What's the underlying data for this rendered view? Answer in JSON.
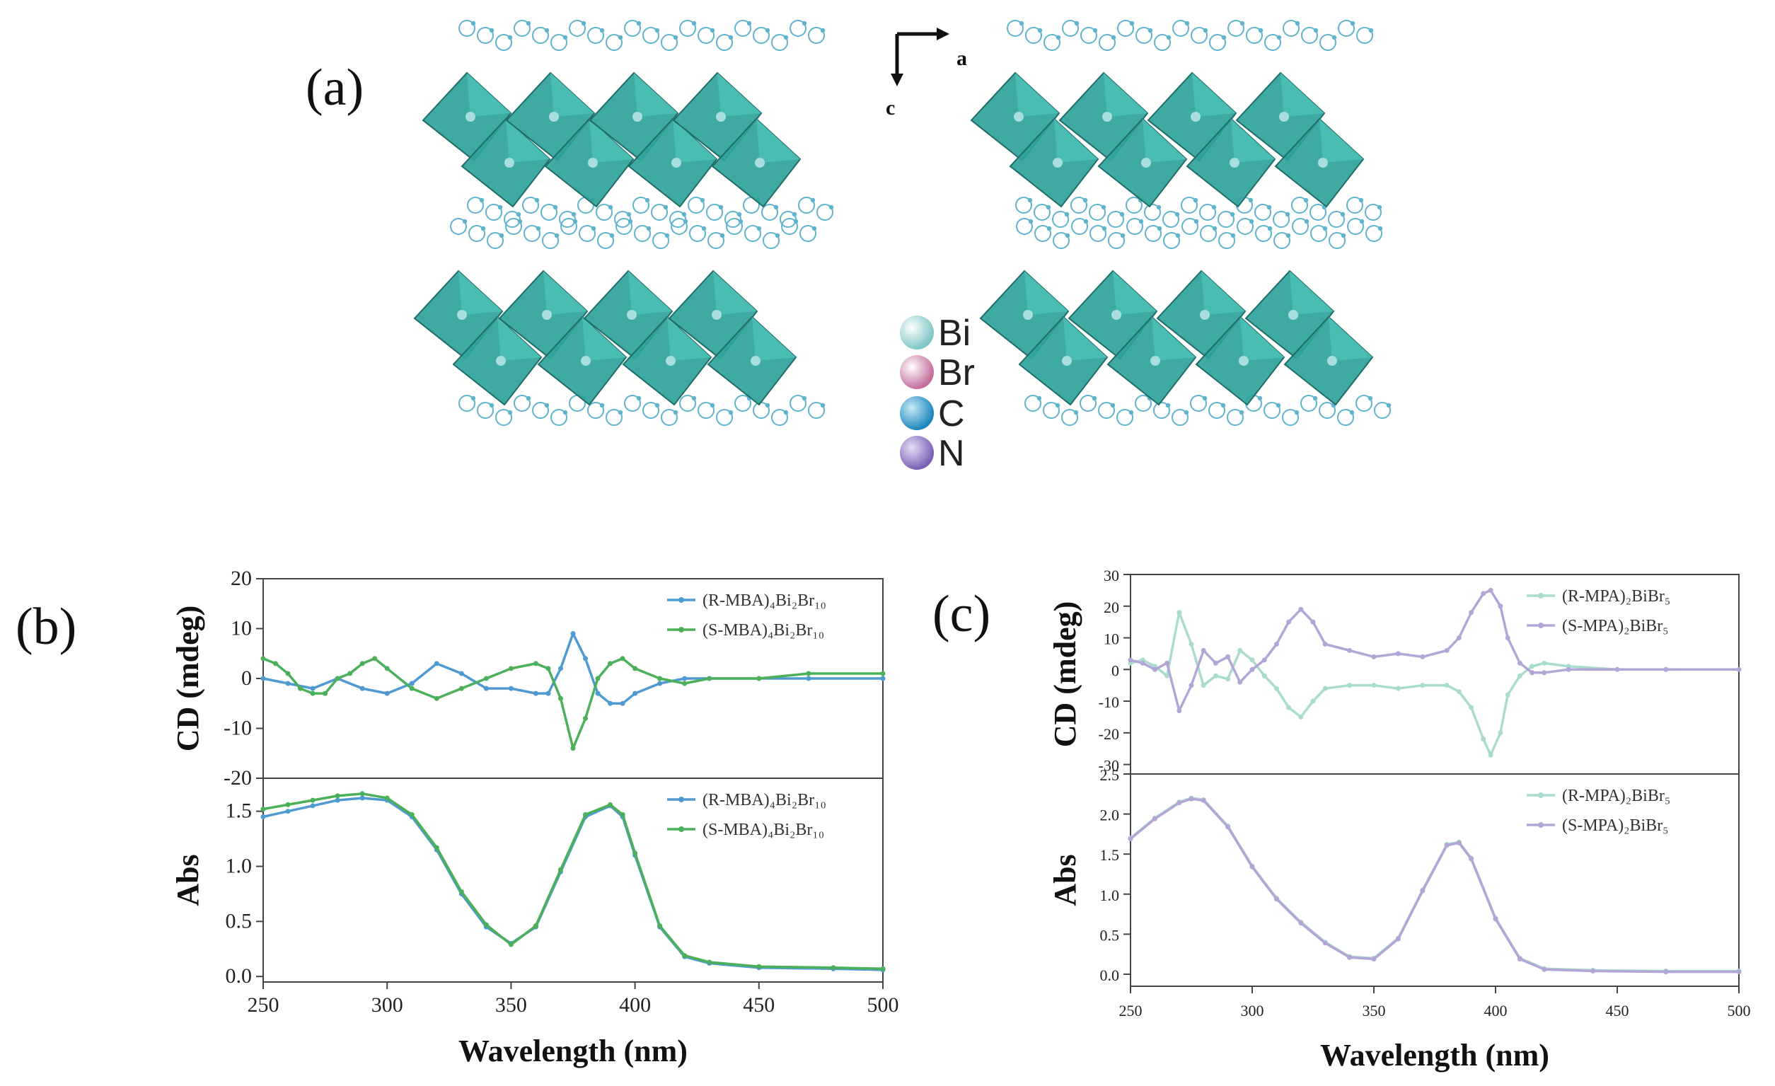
{
  "panels": {
    "a": "(a)",
    "b": "(b)",
    "c": "(c)"
  },
  "structure": {
    "axis_a": "a",
    "axis_c": "c",
    "atoms": [
      {
        "label": "Bi",
        "color": "#a9dede"
      },
      {
        "label": "Br",
        "color": "#d18ab0"
      },
      {
        "label": "C",
        "color": "#2e9fd0"
      },
      {
        "label": "N",
        "color": "#8f77c4"
      }
    ],
    "octahedron_color": "#2fa39a",
    "organic_color": "#5fb3cc"
  },
  "chart_data": [
    {
      "id": "b-cd",
      "type": "line",
      "xlabel": "",
      "ylabel": "CD (mdeg)",
      "xlim": [
        250,
        500
      ],
      "ylim": [
        -20,
        20
      ],
      "yticks": [
        -20,
        -10,
        0,
        10,
        20
      ],
      "series": [
        {
          "name": "(R-MBA)₄Bi₂Br₁₀",
          "color": "#4f9bd1",
          "x": [
            250,
            260,
            270,
            280,
            290,
            300,
            310,
            320,
            330,
            340,
            350,
            360,
            365,
            370,
            375,
            380,
            385,
            390,
            395,
            400,
            410,
            420,
            430,
            450,
            470,
            500
          ],
          "y": [
            0,
            -1,
            -2,
            0,
            -2,
            -3,
            -1,
            3,
            1,
            -2,
            -2,
            -3,
            -3,
            2,
            9,
            4,
            -3,
            -5,
            -5,
            -3,
            -1,
            0,
            0,
            0,
            0,
            0
          ]
        },
        {
          "name": "(S-MBA)₄Bi₂Br₁₀",
          "color": "#4cb05a",
          "x": [
            250,
            255,
            260,
            265,
            270,
            275,
            280,
            285,
            290,
            295,
            300,
            310,
            320,
            330,
            340,
            350,
            360,
            365,
            370,
            375,
            380,
            385,
            390,
            395,
            400,
            410,
            420,
            430,
            450,
            470,
            500
          ],
          "y": [
            4,
            3,
            1,
            -2,
            -3,
            -3,
            0,
            1,
            3,
            4,
            2,
            -2,
            -4,
            -2,
            0,
            2,
            3,
            2,
            -4,
            -14,
            -8,
            0,
            3,
            4,
            2,
            0,
            -1,
            0,
            0,
            1,
            1
          ]
        }
      ]
    },
    {
      "id": "b-abs",
      "type": "line",
      "xlabel": "Wavelength (nm)",
      "ylabel": "Abs",
      "xlim": [
        250,
        500
      ],
      "ylim": [
        -0.05,
        1.8
      ],
      "yticks": [
        0.0,
        0.5,
        1.0,
        1.5
      ],
      "xticks": [
        250,
        300,
        350,
        400,
        450,
        500
      ],
      "series": [
        {
          "name": "(R-MBA)₄Bi₂Br₁₀",
          "color": "#4f9bd1",
          "x": [
            250,
            260,
            270,
            280,
            290,
            300,
            310,
            320,
            330,
            340,
            350,
            360,
            370,
            380,
            390,
            395,
            400,
            410,
            420,
            430,
            450,
            480,
            500
          ],
          "y": [
            1.45,
            1.5,
            1.55,
            1.6,
            1.62,
            1.6,
            1.45,
            1.15,
            0.75,
            0.45,
            0.3,
            0.45,
            0.95,
            1.45,
            1.55,
            1.45,
            1.1,
            0.45,
            0.18,
            0.12,
            0.08,
            0.07,
            0.06
          ]
        },
        {
          "name": "(S-MBA)₄Bi₂Br₁₀",
          "color": "#4cb05a",
          "x": [
            250,
            260,
            270,
            280,
            290,
            300,
            310,
            320,
            330,
            340,
            350,
            360,
            370,
            380,
            390,
            395,
            400,
            410,
            420,
            430,
            450,
            480,
            500
          ],
          "y": [
            1.52,
            1.56,
            1.6,
            1.64,
            1.66,
            1.62,
            1.47,
            1.17,
            0.77,
            0.47,
            0.29,
            0.46,
            0.97,
            1.47,
            1.56,
            1.47,
            1.12,
            0.46,
            0.19,
            0.13,
            0.09,
            0.08,
            0.07
          ]
        }
      ]
    },
    {
      "id": "c-cd",
      "type": "line",
      "xlabel": "",
      "ylabel": "CD (mdeg)",
      "xlim": [
        250,
        500
      ],
      "ylim": [
        -33,
        30
      ],
      "yticks": [
        -30,
        -20,
        -10,
        0,
        10,
        20,
        30
      ],
      "series": [
        {
          "name": "(R-MPA)₂BiBr₅",
          "color": "#a9dccf",
          "x": [
            250,
            255,
            260,
            265,
            270,
            275,
            280,
            285,
            290,
            295,
            300,
            305,
            310,
            315,
            320,
            325,
            330,
            340,
            350,
            360,
            370,
            380,
            385,
            390,
            395,
            398,
            402,
            405,
            410,
            415,
            420,
            430,
            450,
            470,
            500
          ],
          "y": [
            2,
            3,
            1,
            -2,
            18,
            8,
            -5,
            -2,
            -3,
            6,
            3,
            -2,
            -6,
            -12,
            -15,
            -10,
            -6,
            -5,
            -5,
            -6,
            -5,
            -5,
            -7,
            -12,
            -22,
            -27,
            -20,
            -8,
            -2,
            1,
            2,
            1,
            0,
            0,
            0
          ]
        },
        {
          "name": "(S-MPA)₂BiBr₅",
          "color": "#b2a6d6",
          "x": [
            250,
            255,
            260,
            265,
            270,
            275,
            280,
            285,
            290,
            295,
            300,
            305,
            310,
            315,
            320,
            325,
            330,
            340,
            350,
            360,
            370,
            380,
            385,
            390,
            395,
            398,
            402,
            405,
            410,
            415,
            420,
            430,
            450,
            470,
            500
          ],
          "y": [
            3,
            2,
            0,
            2,
            -13,
            -5,
            6,
            2,
            4,
            -4,
            0,
            3,
            8,
            15,
            19,
            15,
            8,
            6,
            4,
            5,
            4,
            6,
            10,
            18,
            24,
            25,
            20,
            10,
            2,
            -1,
            -1,
            0,
            0,
            0,
            0
          ]
        }
      ]
    },
    {
      "id": "c-abs",
      "type": "line",
      "xlabel": "Wavelength (nm)",
      "ylabel": "Abs",
      "xlim": [
        250,
        500
      ],
      "ylim": [
        -0.15,
        2.5
      ],
      "yticks": [
        0.0,
        0.5,
        1.0,
        1.5,
        2.0,
        2.5
      ],
      "xticks": [
        250,
        300,
        350,
        400,
        450,
        500
      ],
      "series": [
        {
          "name": "(R-MPA)₂BiBr₅",
          "color": "#a9dccf",
          "x": [
            250,
            260,
            270,
            275,
            280,
            290,
            300,
            310,
            320,
            330,
            340,
            350,
            360,
            370,
            380,
            385,
            390,
            400,
            410,
            420,
            440,
            470,
            500
          ],
          "y": [
            1.7,
            1.95,
            2.15,
            2.2,
            2.18,
            1.85,
            1.35,
            0.95,
            0.65,
            0.4,
            0.22,
            0.2,
            0.45,
            1.05,
            1.62,
            1.65,
            1.45,
            0.7,
            0.2,
            0.07,
            0.05,
            0.04,
            0.04
          ]
        },
        {
          "name": "(S-MPA)₂BiBr₅",
          "color": "#b2a6d6",
          "x": [
            250,
            260,
            270,
            275,
            280,
            290,
            300,
            310,
            320,
            330,
            340,
            350,
            360,
            370,
            380,
            385,
            390,
            400,
            410,
            420,
            440,
            470,
            500
          ],
          "y": [
            1.69,
            1.94,
            2.14,
            2.19,
            2.17,
            1.84,
            1.34,
            0.94,
            0.64,
            0.39,
            0.21,
            0.19,
            0.44,
            1.04,
            1.61,
            1.64,
            1.44,
            0.69,
            0.19,
            0.06,
            0.04,
            0.03,
            0.03
          ]
        }
      ]
    }
  ]
}
